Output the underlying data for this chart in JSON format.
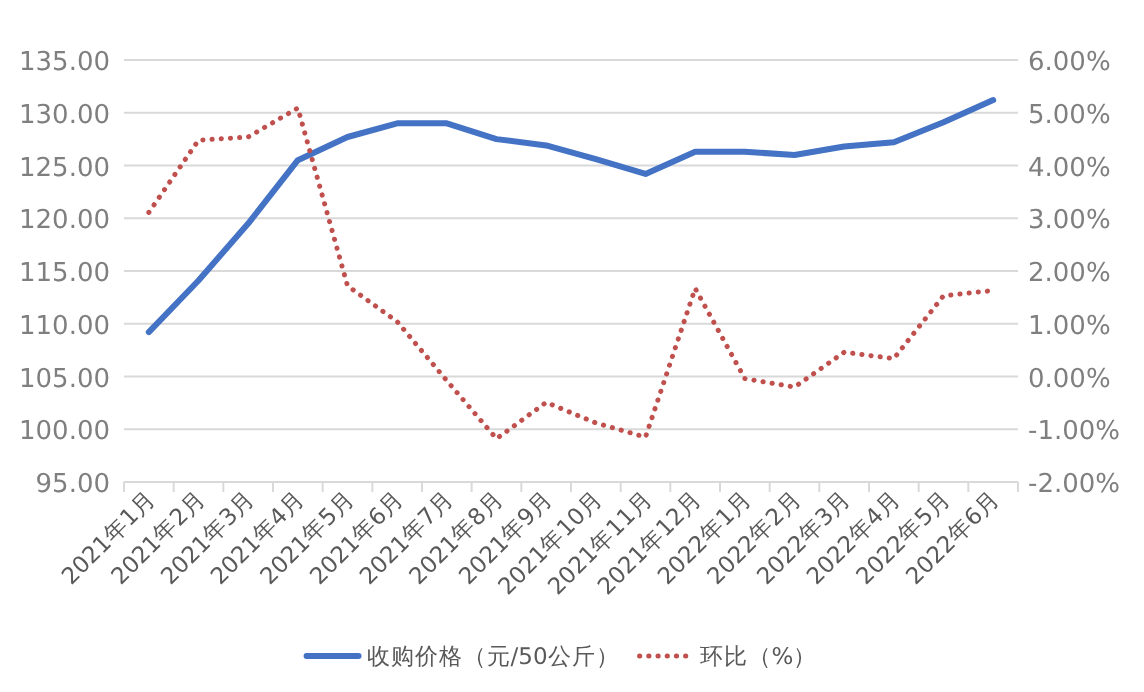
{
  "chart_data": {
    "type": "line",
    "categories": [
      "2021年1月",
      "2021年2月",
      "2021年3月",
      "2021年4月",
      "2021年5月",
      "2021年6月",
      "2021年7月",
      "2021年8月",
      "2021年9月",
      "2021年10月",
      "2021年11月",
      "2021年12月",
      "2022年1月",
      "2022年2月",
      "2022年3月",
      "2022年4月",
      "2022年5月",
      "2022年6月"
    ],
    "series": [
      {
        "name": "收购价格（元/50公斤）",
        "color": "#4472c4",
        "line_style": "solid",
        "values": [
          109.2,
          114.1,
          119.5,
          125.5,
          127.7,
          129.0,
          129.0,
          127.5,
          126.9,
          125.6,
          124.2,
          126.3,
          126.3,
          126.0,
          126.8,
          127.2,
          129.1,
          131.2
        ]
      },
      {
        "name": "环比（%）",
        "color": "#c0504d",
        "line_style": "dotted",
        "axis": "y2",
        "values": [
          3.11,
          4.48,
          4.54,
          5.09,
          1.72,
          1.04,
          -0.08,
          -1.18,
          -0.49,
          -0.88,
          -1.15,
          1.67,
          -0.04,
          -0.2,
          0.46,
          0.34,
          1.53,
          1.63
        ]
      }
    ],
    "ylim": [
      95,
      135
    ],
    "yticks": [
      {
        "value": 95,
        "label": "95.00"
      },
      {
        "value": 100,
        "label": "100.00"
      },
      {
        "value": 105,
        "label": "105.00"
      },
      {
        "value": 110,
        "label": "110.00"
      },
      {
        "value": 115,
        "label": "115.00"
      },
      {
        "value": 120,
        "label": "120.00"
      },
      {
        "value": 125,
        "label": "125.00"
      },
      {
        "value": 130,
        "label": "130.00"
      },
      {
        "value": 135,
        "label": "135.00"
      }
    ],
    "y2lim": [
      -2,
      6
    ],
    "y2ticks": [
      {
        "value": -2,
        "label": "-2.00%"
      },
      {
        "value": -1,
        "label": "-1.00%"
      },
      {
        "value": 0,
        "label": "0.00%"
      },
      {
        "value": 1,
        "label": "1.00%"
      },
      {
        "value": 2,
        "label": "2.00%"
      },
      {
        "value": 3,
        "label": "3.00%"
      },
      {
        "value": 4,
        "label": "4.00%"
      },
      {
        "value": 5,
        "label": "5.00%"
      },
      {
        "value": 6,
        "label": "6.00%"
      }
    ],
    "grid": "y",
    "legend": "bottom"
  }
}
